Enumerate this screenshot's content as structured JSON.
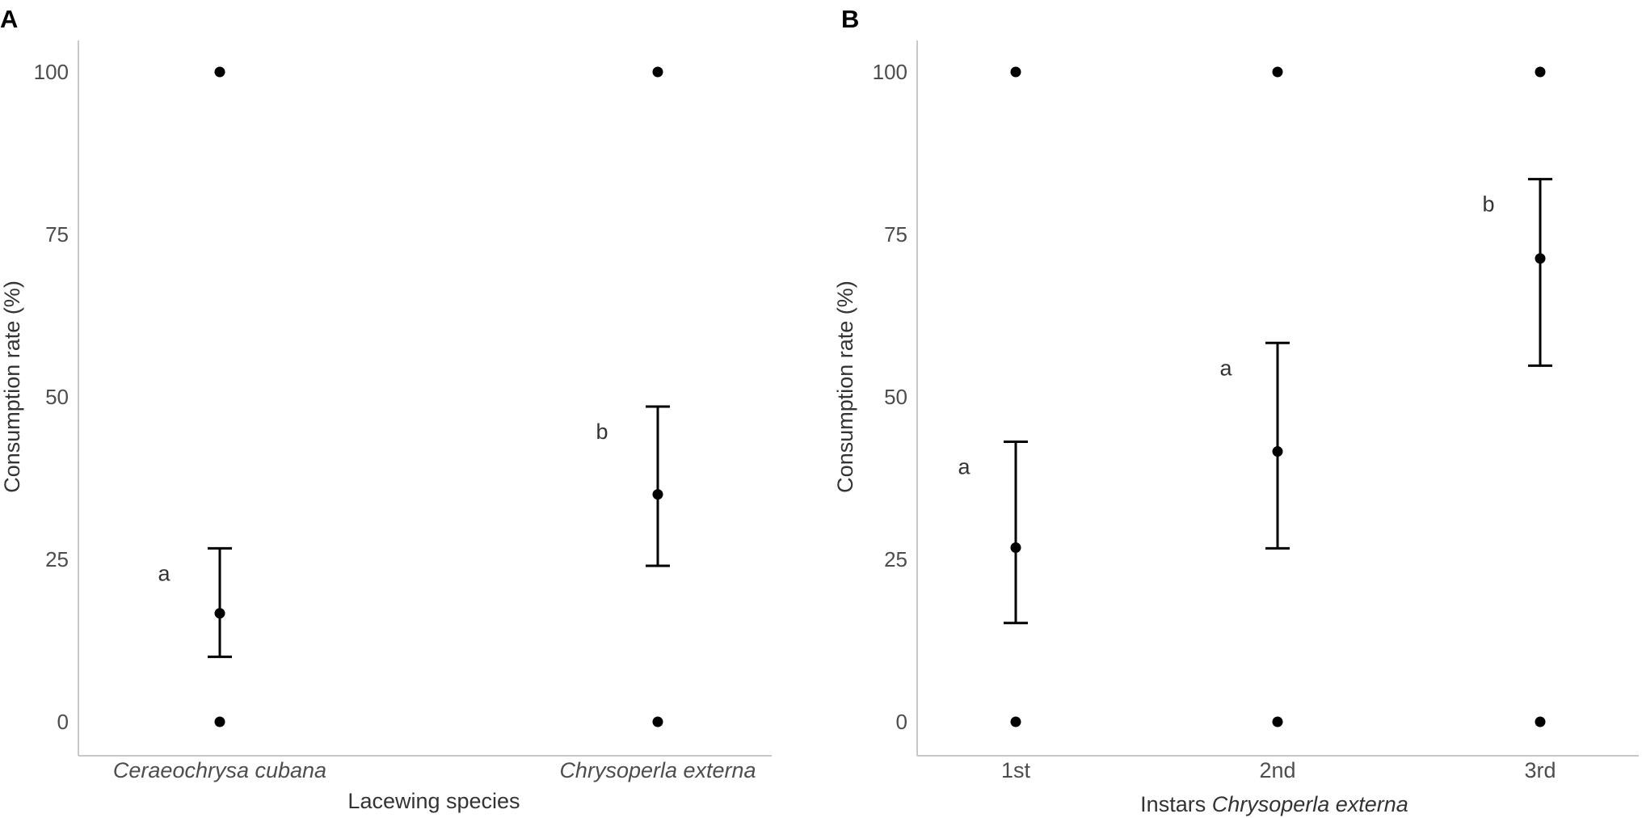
{
  "chart_data": [
    {
      "type": "scatter",
      "panel_label": "A",
      "xlabel": "Lacewing species",
      "xlabel_italic": "",
      "ylabel": "Consumption rate (%)",
      "ylim": [
        0,
        100
      ],
      "yticks": [
        0,
        25,
        50,
        75,
        100
      ],
      "grid": false,
      "categories": [
        {
          "label": "Ceraeochrysa cubana",
          "italic": true
        },
        {
          "label": "Chrysoperla externa",
          "italic": true
        }
      ],
      "raw_points": [
        {
          "category": "Ceraeochrysa cubana",
          "values": [
            0,
            100
          ]
        },
        {
          "category": "Chrysoperla externa",
          "values": [
            0,
            100
          ]
        }
      ],
      "means": [
        {
          "category": "Ceraeochrysa cubana",
          "mean": 16.7,
          "lower": 10,
          "upper": 26.7,
          "letter": "a"
        },
        {
          "category": "Chrysoperla externa",
          "mean": 35,
          "lower": 24,
          "upper": 48.5,
          "letter": "b"
        }
      ]
    },
    {
      "type": "scatter",
      "panel_label": "B",
      "xlabel": "Instars ",
      "xlabel_italic": "Chrysoperla externa",
      "ylabel": "Consumption rate (%)",
      "ylim": [
        0,
        100
      ],
      "yticks": [
        0,
        25,
        50,
        75,
        100
      ],
      "grid": false,
      "categories": [
        {
          "label": "1st",
          "italic": false
        },
        {
          "label": "2nd",
          "italic": false
        },
        {
          "label": "3rd",
          "italic": false
        }
      ],
      "raw_points": [
        {
          "category": "1st",
          "values": [
            0,
            100
          ]
        },
        {
          "category": "2nd",
          "values": [
            0,
            100
          ]
        },
        {
          "category": "3rd",
          "values": [
            0,
            100
          ]
        }
      ],
      "means": [
        {
          "category": "1st",
          "mean": 26.8,
          "lower": 15.2,
          "upper": 43.1,
          "letter": "a"
        },
        {
          "category": "2nd",
          "mean": 41.6,
          "lower": 26.7,
          "upper": 58.3,
          "letter": "a"
        },
        {
          "category": "3rd",
          "mean": 71.3,
          "lower": 54.8,
          "upper": 83.5,
          "letter": "b"
        }
      ]
    }
  ]
}
